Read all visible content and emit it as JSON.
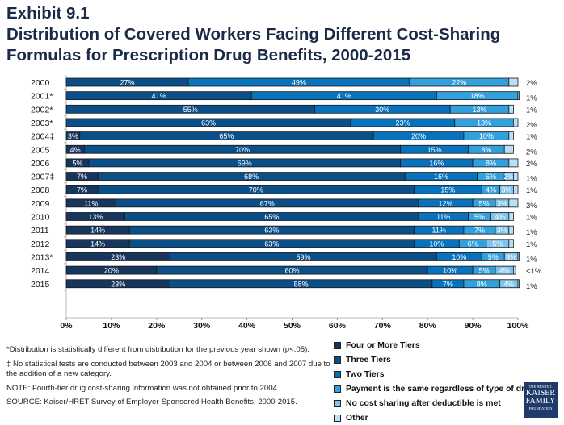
{
  "title_lines": [
    "Exhibit 9.1",
    "Distribution of Covered Workers Facing Different Cost-Sharing",
    "Formulas for Prescription Drug Benefits, 2000-2015"
  ],
  "chart_data": {
    "type": "bar",
    "orientation": "horizontal",
    "stacked": true,
    "categories": [
      "2000",
      "2001*",
      "2002*",
      "2003*",
      "2004‡",
      "2005",
      "2006",
      "2007‡",
      "2008",
      "2009",
      "2010",
      "2011",
      "2012",
      "2013*",
      "2014",
      "2015"
    ],
    "series": [
      {
        "name": "Four or More Tiers",
        "color": "#17365d",
        "values": [
          null,
          null,
          null,
          null,
          3,
          4,
          5,
          7,
          7,
          11,
          13,
          14,
          14,
          23,
          20,
          23
        ]
      },
      {
        "name": "Three Tiers",
        "color": "#0b4f88",
        "values": [
          27,
          41,
          55,
          63,
          65,
          70,
          69,
          68,
          70,
          67,
          65,
          63,
          63,
          59,
          60,
          58
        ]
      },
      {
        "name": "Two Tiers",
        "color": "#0872bd",
        "values": [
          49,
          41,
          30,
          23,
          20,
          15,
          16,
          16,
          15,
          12,
          11,
          11,
          10,
          10,
          10,
          7
        ]
      },
      {
        "name": "Payment is the same regardless of type of drug",
        "color": "#32a0dc",
        "values": [
          22,
          18,
          13,
          13,
          10,
          8,
          8,
          6,
          4,
          5,
          5,
          7,
          6,
          5,
          5,
          8
        ]
      },
      {
        "name": "No cost sharing after deductible is met",
        "color": "#7fc4ea",
        "values": [
          null,
          null,
          null,
          null,
          null,
          null,
          null,
          2,
          3,
          3,
          4,
          3,
          5,
          3,
          4,
          4
        ]
      },
      {
        "name": "Other",
        "color": "#b9e1f6",
        "values": [
          2,
          1,
          1,
          2,
          1,
          2,
          2,
          1,
          1,
          3,
          1,
          1,
          1,
          1,
          0.5,
          1
        ],
        "labels": [
          "2%",
          "1%",
          "1%",
          "2%",
          "1%",
          "2%",
          "2%",
          "1%",
          "1%",
          "3%",
          "1%",
          "1%",
          "1%",
          "1%",
          "<1%",
          "1%"
        ]
      }
    ],
    "xlim": [
      0,
      100
    ],
    "xticks": [
      "0%",
      "10%",
      "20%",
      "30%",
      "40%",
      "50%",
      "60%",
      "70%",
      "80%",
      "90%",
      "100%"
    ],
    "legend_position": "bottom-right"
  },
  "notes": [
    "*Distribution is statistically different from distribution for the previous year shown (p<.05).",
    "‡ No statistical tests are conducted between 2003 and 2004 or between 2006 and 2007 due to the addition of a new category.",
    "NOTE: Fourth-tier drug cost-sharing information was not obtained prior to 2004.",
    "SOURCE: Kaiser/HRET Survey of Employer-Sponsored Health Benefits, 2000-2015."
  ],
  "logo": [
    "THE HENRY J.",
    "KAISER",
    "FAMILY",
    "FOUNDATION"
  ]
}
